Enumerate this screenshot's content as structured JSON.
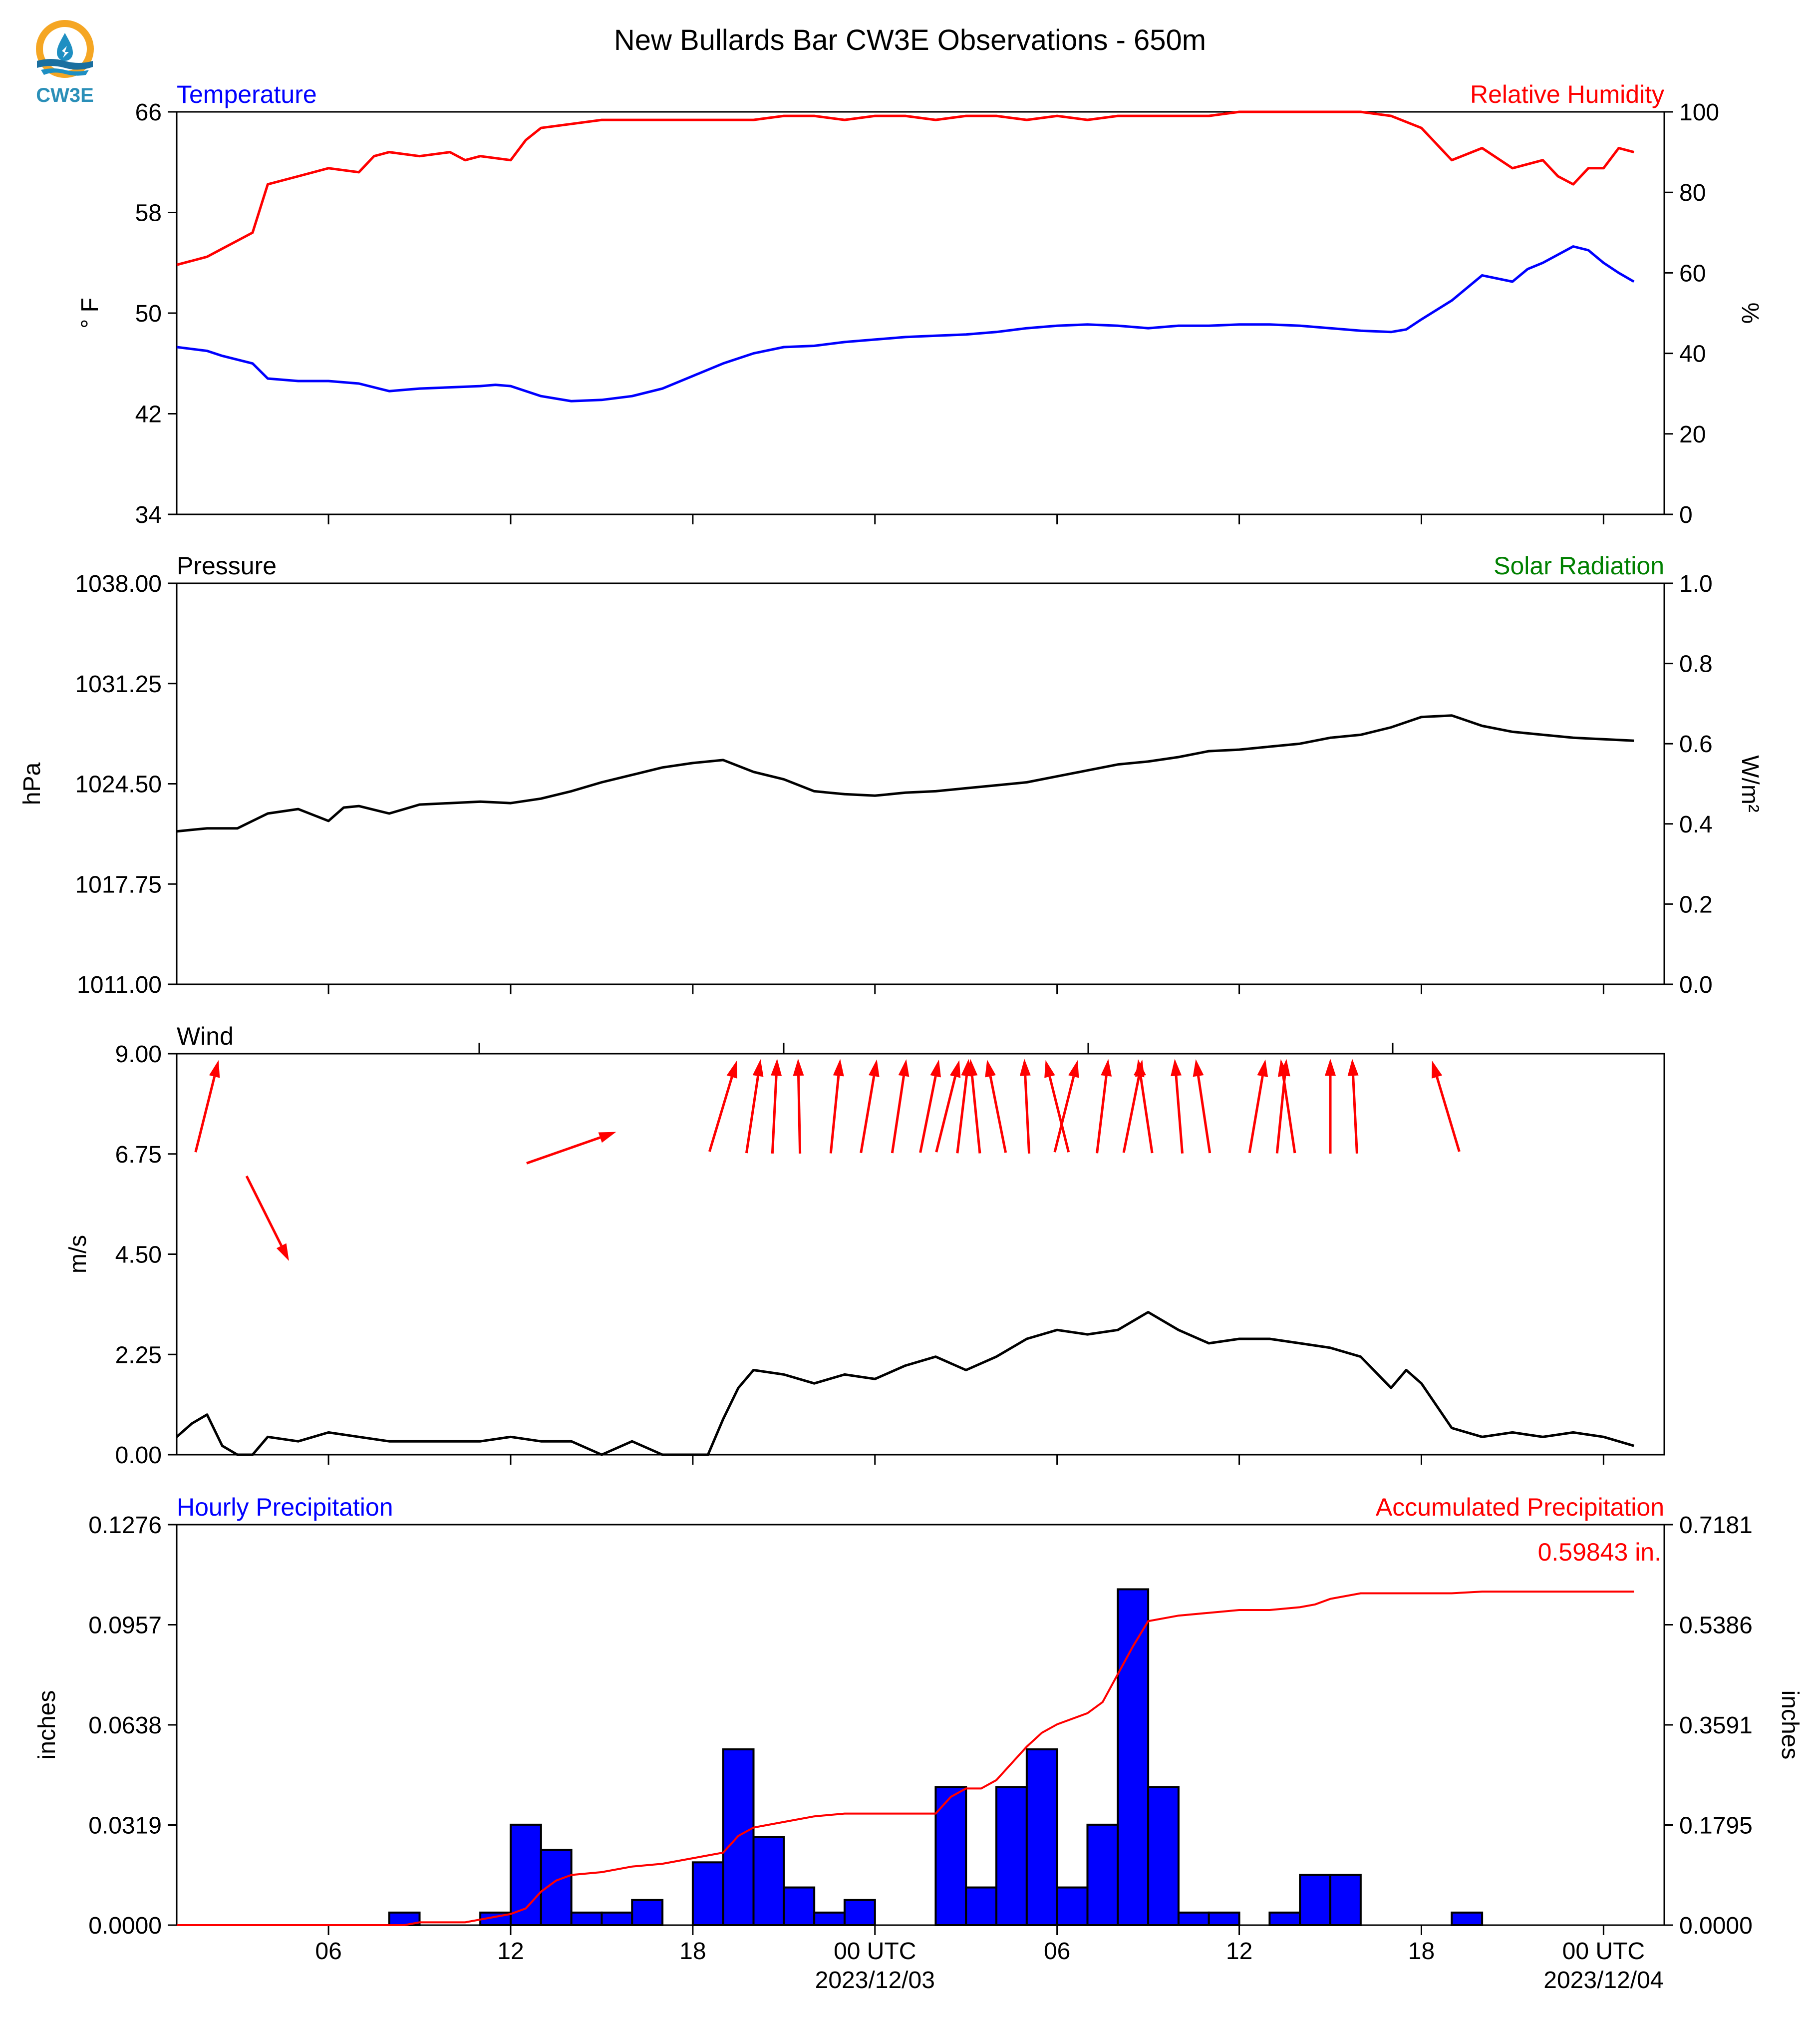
{
  "title": "New Bullards Bar CW3E Observations - 650m",
  "logo": {
    "text": "CW3E",
    "colors": {
      "outer": "#f5a623",
      "inner": "#1e8fc2",
      "wave": "#1a6fa0",
      "text": "#2a8fb8"
    }
  },
  "colors": {
    "blue": "#0000ff",
    "red": "#ff0000",
    "green": "#008000",
    "black": "#000000"
  },
  "chart_data": [
    {
      "type": "line",
      "left_title": "Temperature",
      "right_title": "Relative Humidity",
      "left_unit": "° F",
      "right_unit": "%",
      "ylim": [
        34,
        66
      ],
      "y2lim": [
        0,
        100
      ],
      "yticks": [
        "66",
        "58",
        "50",
        "42",
        "34"
      ],
      "y2ticks": [
        "100",
        "80",
        "60",
        "40",
        "20",
        "0"
      ],
      "series": [
        {
          "name": "Temperature",
          "axis": "left",
          "color": "#0000ff",
          "x": [
            0,
            1,
            1.5,
            2,
            2.5,
            3,
            4,
            5,
            6,
            7,
            7.5,
            8,
            9,
            10,
            10.5,
            11,
            12,
            13,
            14,
            15,
            16,
            17,
            18,
            19,
            20,
            21,
            22,
            23,
            24,
            25,
            26,
            27,
            28,
            29,
            30,
            31,
            32,
            33,
            34,
            35,
            36,
            37,
            38,
            39,
            40,
            40.5,
            41,
            42,
            43,
            44,
            44.5,
            45,
            46,
            46.5,
            47,
            47.5,
            48
          ],
          "y": [
            47.3,
            47.0,
            46.6,
            46.3,
            46.0,
            44.8,
            44.6,
            44.6,
            44.4,
            43.8,
            43.9,
            44.0,
            44.1,
            44.2,
            44.3,
            44.2,
            43.4,
            43.0,
            43.1,
            43.4,
            44.0,
            45.0,
            46.0,
            46.8,
            47.3,
            47.4,
            47.7,
            47.9,
            48.1,
            48.2,
            48.3,
            48.5,
            48.8,
            49.0,
            49.1,
            49.0,
            48.8,
            49.0,
            49.0,
            49.1,
            49.1,
            49.0,
            48.8,
            48.6,
            48.5,
            48.7,
            49.5,
            51.0,
            53.0,
            52.5,
            53.5,
            54.0,
            55.3,
            55.0,
            54.0,
            53.2,
            52.5
          ]
        },
        {
          "name": "Relative Humidity",
          "axis": "right",
          "color": "#ff0000",
          "x": [
            0,
            1,
            1.5,
            2,
            2.5,
            3,
            3.5,
            4,
            5,
            6,
            6.5,
            7,
            8,
            9,
            9.5,
            10,
            11,
            11.5,
            12,
            13,
            14,
            15,
            16,
            17,
            18,
            19,
            20,
            21,
            22,
            23,
            24,
            25,
            26,
            27,
            28,
            29,
            30,
            31,
            32,
            33,
            34,
            35,
            36,
            37,
            38,
            39,
            40,
            41,
            42,
            43,
            44,
            45,
            45.5,
            46,
            46.5,
            47,
            47.5,
            48
          ],
          "y": [
            62,
            64,
            66,
            68,
            70,
            82,
            83,
            84,
            86,
            85,
            89,
            90,
            89,
            90,
            88,
            89,
            88,
            93,
            96,
            97,
            98,
            98,
            98,
            98,
            98,
            98,
            99,
            99,
            98,
            99,
            99,
            98,
            99,
            99,
            98,
            99,
            98,
            99,
            99,
            99,
            99,
            100,
            100,
            100,
            100,
            100,
            99,
            96,
            88,
            91,
            86,
            88,
            84,
            82,
            86,
            86,
            91,
            90
          ]
        }
      ]
    },
    {
      "type": "line",
      "left_title": "Pressure",
      "right_title": "Solar Radiation",
      "left_unit": "hPa",
      "right_unit": "W/m²",
      "ylim": [
        1011.0,
        1038.0
      ],
      "y2lim": [
        0.0,
        1.0
      ],
      "yticks": [
        "1038.00",
        "1031.25",
        "1024.50",
        "1017.75",
        "1011.00"
      ],
      "y2ticks": [
        "1.0",
        "0.8",
        "0.6",
        "0.4",
        "0.2",
        "0.0"
      ],
      "series": [
        {
          "name": "Pressure",
          "axis": "left",
          "color": "#000000",
          "x": [
            0,
            1,
            2,
            3,
            4,
            5,
            5.5,
            6,
            7,
            7.5,
            8,
            9,
            10,
            11,
            12,
            13,
            14,
            15,
            16,
            17,
            18,
            19,
            20,
            21,
            22,
            23,
            24,
            25,
            26,
            27,
            28,
            29,
            30,
            31,
            32,
            33,
            34,
            35,
            36,
            37,
            38,
            39,
            40,
            41,
            42,
            43,
            44,
            45,
            46,
            47,
            48
          ],
          "y": [
            1021.3,
            1021.5,
            1021.5,
            1022.5,
            1022.8,
            1022.0,
            1022.9,
            1023.0,
            1022.5,
            1022.8,
            1023.1,
            1023.2,
            1023.3,
            1023.2,
            1023.5,
            1024.0,
            1024.6,
            1025.1,
            1025.6,
            1025.9,
            1026.1,
            1025.3,
            1024.8,
            1024.0,
            1023.8,
            1023.7,
            1023.9,
            1024.0,
            1024.2,
            1024.4,
            1024.6,
            1025.0,
            1025.4,
            1025.8,
            1026.0,
            1026.3,
            1026.7,
            1026.8,
            1027.0,
            1027.2,
            1027.6,
            1027.8,
            1028.3,
            1029.0,
            1029.1,
            1028.4,
            1028.0,
            1027.8,
            1027.6,
            1027.5,
            1027.4
          ]
        }
      ]
    },
    {
      "type": "line",
      "left_title": "Wind",
      "left_unit": "m/s",
      "ylim": [
        0.0,
        9.0
      ],
      "yticks": [
        "9.00",
        "6.75",
        "4.50",
        "2.25",
        "0.00"
      ],
      "series": [
        {
          "name": "Wind",
          "axis": "left",
          "color": "#000000",
          "x": [
            0,
            0.5,
            1,
            1.5,
            2,
            2.5,
            3,
            4,
            5,
            6,
            7,
            8,
            9,
            10,
            11,
            12,
            13,
            14,
            15,
            16,
            17,
            17.5,
            18,
            18.5,
            19,
            20,
            21,
            22,
            23,
            24,
            25,
            26,
            27,
            28,
            29,
            30,
            31,
            32,
            33,
            34,
            35,
            36,
            37,
            38,
            39,
            40,
            40.5,
            41,
            42,
            43,
            44,
            45,
            46,
            47,
            48
          ],
          "y": [
            0.4,
            0.7,
            0.9,
            0.2,
            0.0,
            0.0,
            0.4,
            0.3,
            0.5,
            0.4,
            0.3,
            0.3,
            0.3,
            0.3,
            0.4,
            0.3,
            0.3,
            0.0,
            0.3,
            0.0,
            0.0,
            0.0,
            0.8,
            1.5,
            1.9,
            1.8,
            1.6,
            1.8,
            1.7,
            2.0,
            2.2,
            1.9,
            2.2,
            2.6,
            2.8,
            2.7,
            2.8,
            3.2,
            2.8,
            2.5,
            2.6,
            2.6,
            2.5,
            2.4,
            2.2,
            1.5,
            1.9,
            1.6,
            0.6,
            0.4,
            0.5,
            0.4,
            0.5,
            0.4,
            0.2
          ]
        }
      ],
      "arrows": [
        {
          "x": 1.0,
          "u": 0.25,
          "v": 1.0
        },
        {
          "x": 3.0,
          "u": 0.5,
          "v": -1.0
        },
        {
          "x": 13.0,
          "u": 1.0,
          "v": 0.35
        },
        {
          "x": 18.0,
          "u": 0.3,
          "v": 1.0
        },
        {
          "x": 19.0,
          "u": 0.15,
          "v": 1.0
        },
        {
          "x": 19.7,
          "u": 0.05,
          "v": 1.0
        },
        {
          "x": 20.5,
          "u": -0.02,
          "v": 1.0
        },
        {
          "x": 21.7,
          "u": 0.1,
          "v": 1.0
        },
        {
          "x": 22.8,
          "u": 0.17,
          "v": 1.0
        },
        {
          "x": 23.8,
          "u": 0.15,
          "v": 1.0
        },
        {
          "x": 24.8,
          "u": 0.2,
          "v": 1.0
        },
        {
          "x": 25.4,
          "u": 0.25,
          "v": 1.0
        },
        {
          "x": 25.9,
          "u": 0.12,
          "v": 1.0
        },
        {
          "x": 26.3,
          "u": -0.1,
          "v": 1.0
        },
        {
          "x": 27.0,
          "u": -0.2,
          "v": 1.0
        },
        {
          "x": 28.0,
          "u": -0.05,
          "v": 1.0
        },
        {
          "x": 29.0,
          "u": -0.25,
          "v": 1.0
        },
        {
          "x": 29.3,
          "u": 0.25,
          "v": 1.0
        },
        {
          "x": 30.5,
          "u": 0.12,
          "v": 1.0
        },
        {
          "x": 31.5,
          "u": 0.2,
          "v": 1.0
        },
        {
          "x": 31.9,
          "u": -0.15,
          "v": 1.0
        },
        {
          "x": 33.0,
          "u": -0.08,
          "v": 1.0
        },
        {
          "x": 33.8,
          "u": -0.15,
          "v": 1.0
        },
        {
          "x": 35.6,
          "u": 0.17,
          "v": 1.0
        },
        {
          "x": 36.4,
          "u": 0.1,
          "v": 1.0
        },
        {
          "x": 36.6,
          "u": -0.15,
          "v": 1.0
        },
        {
          "x": 38.0,
          "u": 0.0,
          "v": 1.0
        },
        {
          "x": 38.8,
          "u": -0.05,
          "v": 1.0
        },
        {
          "x": 41.8,
          "u": -0.3,
          "v": 1.0
        }
      ]
    },
    {
      "type": "bar",
      "left_title": "Hourly Precipitation",
      "right_title": "Accumulated Precipitation",
      "left_unit": "inches",
      "right_unit": "inches",
      "ylim": [
        0.0,
        0.1276
      ],
      "y2lim": [
        0.0,
        0.7181
      ],
      "yticks": [
        "0.1276",
        "0.0957",
        "0.0638",
        "0.0319",
        "0.0000"
      ],
      "y2ticks": [
        "0.7181",
        "0.5386",
        "0.3591",
        "0.1795",
        "0.0000"
      ],
      "total_label": "0.59843 in.",
      "xticks": [
        {
          "x": 5,
          "label": "06",
          "sub": ""
        },
        {
          "x": 11,
          "label": "12",
          "sub": ""
        },
        {
          "x": 17,
          "label": "18",
          "sub": ""
        },
        {
          "x": 23,
          "label": "00 UTC",
          "sub": "2023/12/03"
        },
        {
          "x": 29,
          "label": "06",
          "sub": ""
        },
        {
          "x": 35,
          "label": "12",
          "sub": ""
        },
        {
          "x": 41,
          "label": "18",
          "sub": ""
        },
        {
          "x": 47,
          "label": "00 UTC",
          "sub": "2023/12/04"
        }
      ],
      "bars": {
        "color": "#0000ff",
        "x": [
          7.5,
          10.5,
          11.5,
          12.5,
          13.5,
          14.5,
          15.5,
          17.5,
          18.5,
          19.5,
          20.5,
          21.5,
          22.5,
          25.5,
          26.5,
          27.5,
          28.5,
          29.5,
          30.5,
          31.5,
          32.5,
          33.5,
          34.5,
          36.5,
          37.5,
          38.5,
          42.5
        ],
        "values": [
          0.004,
          0.004,
          0.032,
          0.024,
          0.004,
          0.004,
          0.008,
          0.02,
          0.056,
          0.028,
          0.012,
          0.004,
          0.008,
          0.044,
          0.012,
          0.044,
          0.056,
          0.012,
          0.032,
          0.107,
          0.044,
          0.004,
          0.004,
          0.004,
          0.016,
          0.016,
          0.004
        ]
      },
      "accumulated": {
        "color": "#ff0000",
        "x": [
          0,
          7.5,
          8,
          9,
          9.5,
          10,
          11,
          11.5,
          12,
          12.5,
          13,
          14,
          15,
          16,
          17,
          17.5,
          18,
          18.5,
          19,
          20,
          21,
          22,
          23,
          24,
          25,
          25.5,
          26,
          26.5,
          27,
          27.5,
          28,
          28.5,
          29,
          30,
          30.5,
          31,
          31.5,
          32,
          33,
          34,
          35,
          36,
          37,
          37.5,
          38,
          39,
          40,
          41,
          42,
          43,
          44,
          45,
          46,
          47,
          48
        ],
        "y": [
          0,
          0,
          0.005,
          0.005,
          0.005,
          0.01,
          0.02,
          0.03,
          0.06,
          0.08,
          0.09,
          0.095,
          0.105,
          0.11,
          0.12,
          0.125,
          0.13,
          0.16,
          0.175,
          0.185,
          0.195,
          0.2,
          0.2,
          0.2,
          0.2,
          0.23,
          0.245,
          0.245,
          0.26,
          0.29,
          0.32,
          0.345,
          0.36,
          0.38,
          0.4,
          0.45,
          0.5,
          0.545,
          0.555,
          0.56,
          0.565,
          0.565,
          0.57,
          0.575,
          0.585,
          0.595,
          0.595,
          0.595,
          0.595,
          0.598,
          0.598,
          0.598,
          0.598,
          0.598,
          0.598
        ]
      }
    }
  ]
}
